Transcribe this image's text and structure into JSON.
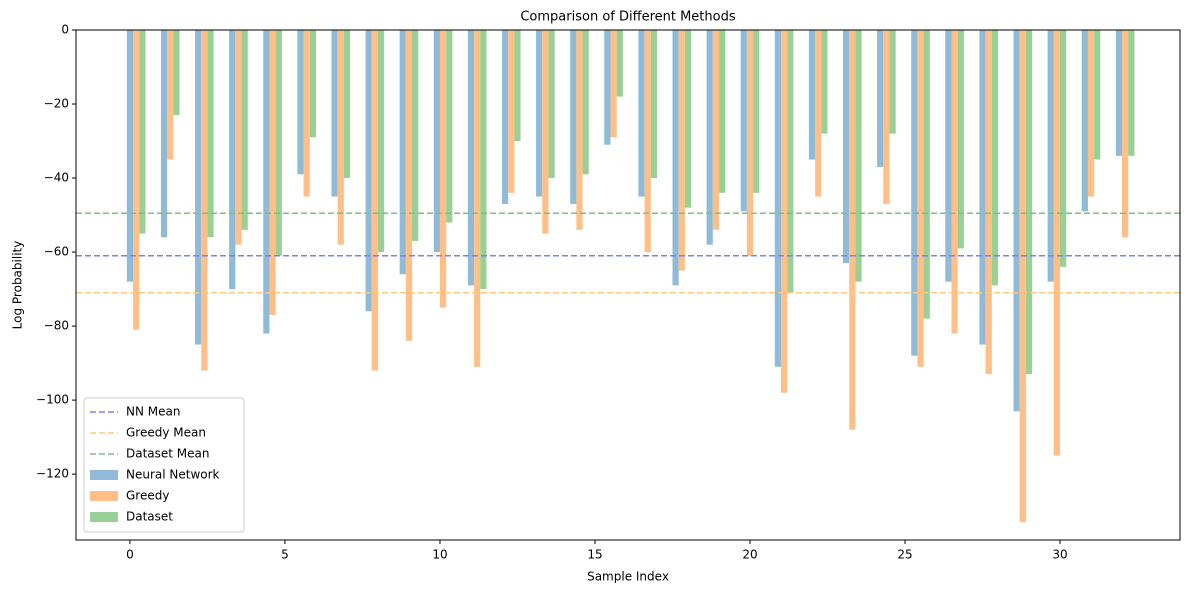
{
  "chart_data": {
    "type": "bar",
    "title": "Comparison of Different Methods",
    "xlabel": "Sample Index",
    "ylabel": "Log Probability",
    "x": [
      0,
      1.1,
      2.2,
      3.3,
      4.4,
      5.5,
      6.6,
      7.7,
      8.8,
      9.9,
      11,
      12.1,
      13.2,
      14.3,
      15.4,
      16.5,
      17.6,
      18.7,
      19.8,
      20.9,
      22,
      23.1,
      24.2,
      25.3,
      26.4,
      27.5,
      28.6,
      29.7,
      30.8,
      31.9
    ],
    "series": [
      {
        "name": "Neural Network",
        "color": "#8fbbd9",
        "values": [
          -68,
          -56,
          -85,
          -70,
          -82,
          -39,
          -45,
          -76,
          -66,
          -60,
          -69,
          -47,
          -45,
          -47,
          -31,
          -45,
          -69,
          -58,
          -49,
          -91,
          -35,
          -63,
          -37,
          -88,
          -68,
          -85,
          -103,
          -68,
          -49,
          -34
        ]
      },
      {
        "name": "Greedy",
        "color": "#ffbf86",
        "values": [
          -81,
          -35,
          -92,
          -58,
          -77,
          -45,
          -58,
          -92,
          -84,
          -75,
          -91,
          -44,
          -55,
          -54,
          -29,
          -60,
          -65,
          -54,
          -61,
          -98,
          -45,
          -108,
          -47,
          -91,
          -82,
          -93,
          -133,
          -115,
          -45,
          -56
        ]
      },
      {
        "name": "Dataset",
        "color": "#98d095",
        "values": [
          -55,
          -23,
          -56,
          -54,
          -61,
          -29,
          -40,
          -60,
          -57,
          -52,
          -70,
          -30,
          -40,
          -39,
          -18,
          -40,
          -48,
          -44,
          -44,
          -71,
          -28,
          -68,
          -28,
          -78,
          -59,
          -69,
          -93,
          -64,
          -35,
          -34
        ]
      }
    ],
    "reference_lines": [
      {
        "name": "NN Mean",
        "value": -61,
        "color": "#7f7ff0"
      },
      {
        "name": "Greedy Mean",
        "value": -71,
        "color": "#ffc97f"
      },
      {
        "name": "Dataset Mean",
        "value": -49.5,
        "color": "#7fbf7f"
      }
    ],
    "xlim": [
      -1.74,
      33.87
    ],
    "ylim": [
      -137.8,
      0
    ],
    "xticks": [
      0,
      5,
      10,
      15,
      20,
      25,
      30
    ],
    "yticks": [
      {
        "value": -120,
        "label": "−120"
      },
      {
        "value": -100,
        "label": "−100"
      },
      {
        "value": -80,
        "label": "−80"
      },
      {
        "value": -60,
        "label": "−60"
      },
      {
        "value": -40,
        "label": "−40"
      },
      {
        "value": -20,
        "label": "−20"
      },
      0
    ],
    "legend": "lower left"
  }
}
